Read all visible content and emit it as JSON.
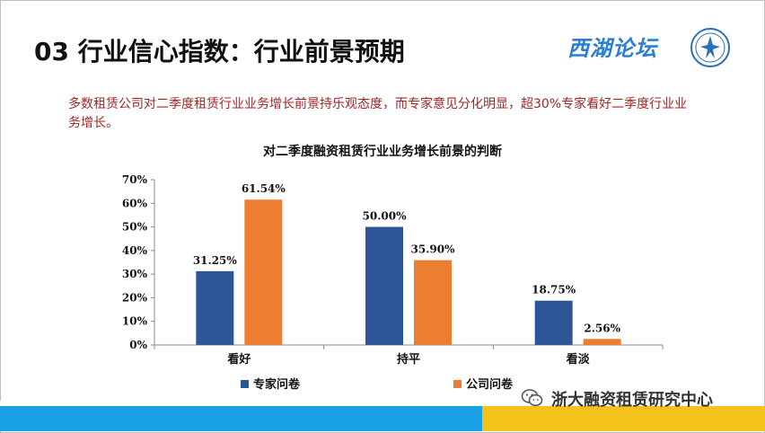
{
  "slide": {
    "title": "03 行业信心指数：行业前景预期",
    "brand": "西湖论坛",
    "summary": "多数租赁公司对二季度租赁行业业务增长前景持乐观态度，而专家意见分化明显，超30%专家看好二季度行业业务增长。",
    "footer": "浙大融资租赁研究中心",
    "colors": {
      "series1": "#2e5597",
      "series2": "#ed7d31",
      "summary_text": "#a32626",
      "footer_blue": "#1aa0e6",
      "footer_yellow": "#f4c21a"
    }
  },
  "chart_data": {
    "type": "bar",
    "title": "对二季度融资租赁行业业务增长前景的判断",
    "categories": [
      "看好",
      "持平",
      "看淡"
    ],
    "series": [
      {
        "name": "专家问卷",
        "values": [
          31.25,
          50.0,
          18.75
        ],
        "labels": [
          "31.25%",
          "50.00%",
          "18.75%"
        ]
      },
      {
        "name": "公司问卷",
        "values": [
          61.54,
          35.9,
          2.56
        ],
        "labels": [
          "61.54%",
          "35.90%",
          "2.56%"
        ]
      }
    ],
    "ylim": [
      0,
      70
    ],
    "yticks": [
      "0%",
      "10%",
      "20%",
      "30%",
      "40%",
      "50%",
      "60%",
      "70%"
    ],
    "legend_position": "bottom",
    "grid": false
  }
}
